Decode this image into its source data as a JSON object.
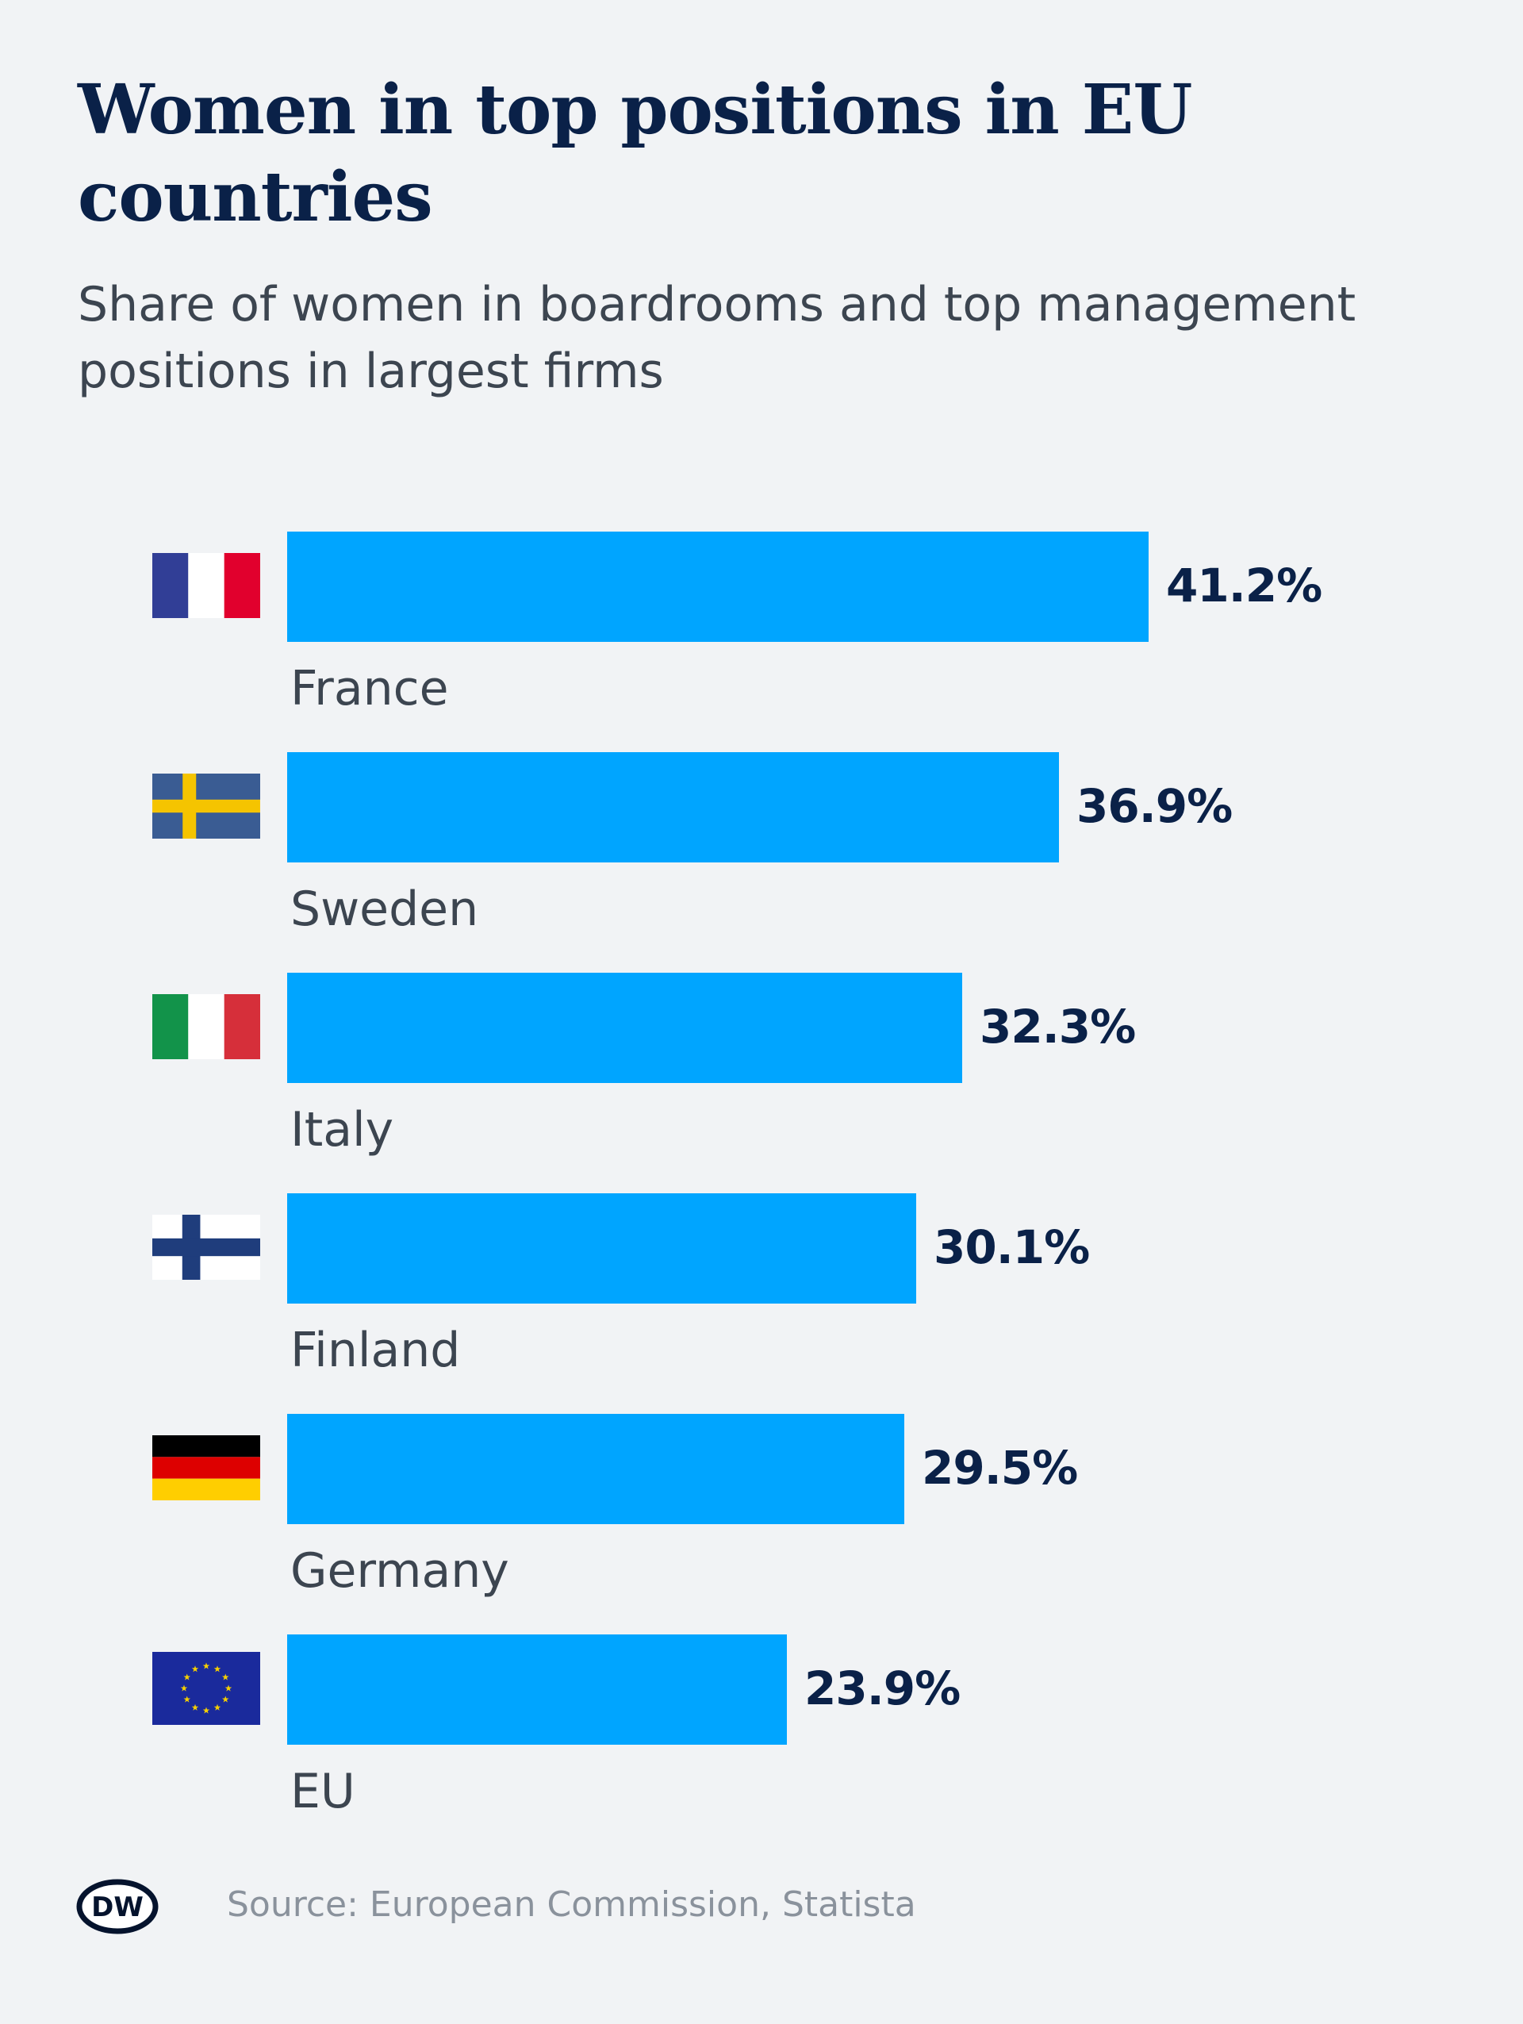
{
  "title": "Women in top positions in EU countries",
  "subtitle": "Share of women in boardrooms and top management positions in largest firms",
  "source": "Source: European Commission, Statista",
  "logo": {
    "text": "DW",
    "icon": "dw-logo-icon"
  },
  "colors": {
    "background": "#f1f3f5",
    "bar": "#00a5ff",
    "title": "#0a2148",
    "text": "#3c4550",
    "source": "#8a929c"
  },
  "chart_data": {
    "type": "bar",
    "orientation": "horizontal",
    "title": "Women in top positions in EU countries",
    "subtitle": "Share of women in boardrooms and top management positions in largest firms",
    "categories": [
      "France",
      "Sweden",
      "Italy",
      "Finland",
      "Germany",
      "EU"
    ],
    "values": [
      41.2,
      36.9,
      32.3,
      30.1,
      29.5,
      23.9
    ],
    "value_labels": [
      "41.2%",
      "36.9%",
      "32.3%",
      "30.1%",
      "29.5%",
      "23.9%"
    ],
    "flags": [
      "france-flag-icon",
      "sweden-flag-icon",
      "italy-flag-icon",
      "finland-flag-icon",
      "germany-flag-icon",
      "eu-flag-icon"
    ],
    "unit": "%",
    "xlim": [
      0,
      41.2
    ],
    "grid": false,
    "legend": false
  }
}
